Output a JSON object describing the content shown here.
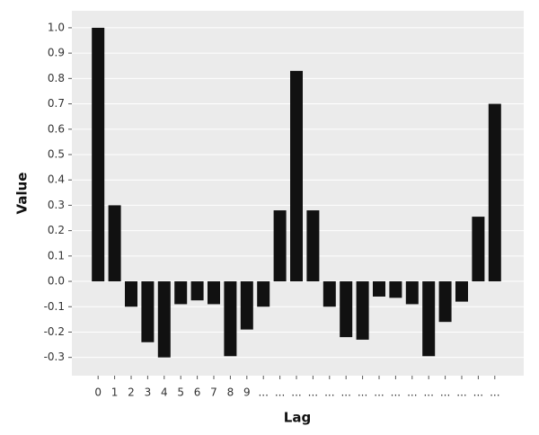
{
  "chart_data": {
    "type": "bar",
    "x_label": "Lag",
    "y_label": "Value",
    "categories": [
      "0",
      "1",
      "2",
      "3",
      "4",
      "5",
      "6",
      "7",
      "8",
      "9",
      "...",
      "...",
      "...",
      "...",
      "...",
      "...",
      "...",
      "...",
      "...",
      "...",
      "...",
      "...",
      "...",
      "...",
      "..."
    ],
    "values": [
      1.0,
      0.3,
      -0.1,
      -0.24,
      -0.3,
      -0.09,
      -0.075,
      -0.09,
      -0.295,
      -0.19,
      -0.1,
      0.28,
      0.83,
      0.28,
      -0.1,
      -0.22,
      -0.23,
      -0.06,
      -0.065,
      -0.09,
      -0.295,
      -0.16,
      -0.08,
      0.255,
      0.7
    ],
    "color": "#111111",
    "ylim": [
      -0.372,
      1.067
    ],
    "yticks": [
      -0.3,
      -0.2,
      -0.1,
      {
        "value": 0,
        "label": "0.0"
      },
      0.1,
      0.2,
      0.3,
      0.4,
      0.5,
      0.6,
      0.7,
      0.8,
      0.9,
      {
        "value": 1,
        "label": "1.0"
      }
    ],
    "grid": true
  }
}
